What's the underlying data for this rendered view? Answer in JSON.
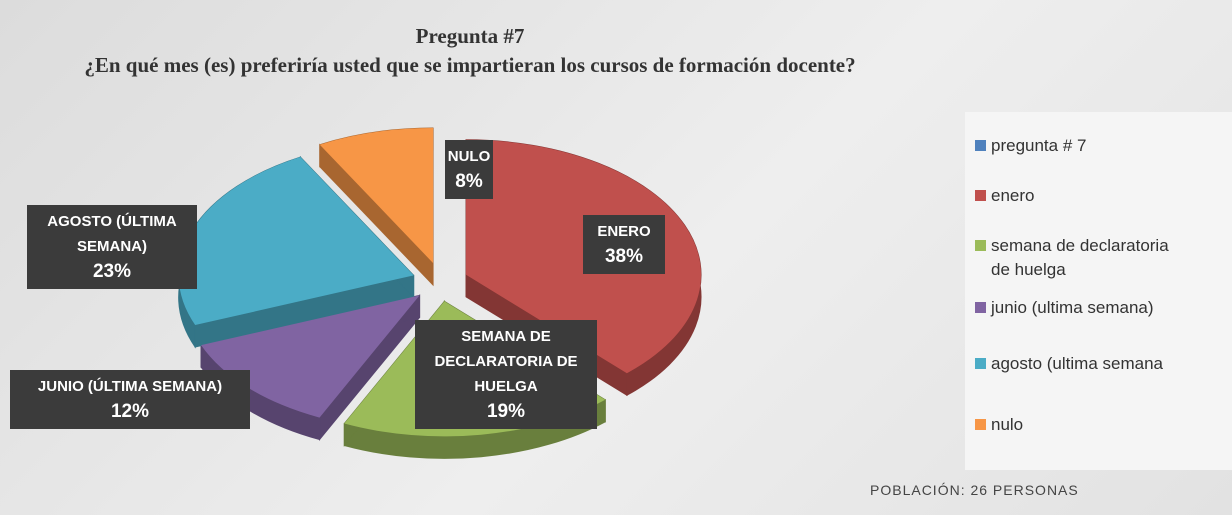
{
  "chart_data": {
    "type": "pie3d",
    "title": "Pregunta #7",
    "subtitle": "¿En qué mes (es) preferiría usted que se impartieran los cursos de formación docente?",
    "categories": [
      "pregunta # 7",
      "enero",
      "semana de declaratoria de huelga",
      "junio (ultima semana)",
      "agosto (ultima semana",
      "nulo"
    ],
    "values": [
      0,
      38,
      19,
      12,
      23,
      8
    ],
    "colors": [
      "#4f81bd",
      "#c0504d",
      "#9bbb59",
      "#8064a2",
      "#4bacc6",
      "#f79646"
    ],
    "data_labels": [
      null,
      "ENERO",
      "SEMANA DE DECLARATORIA DE HUELGA",
      "JUNIO (ÚLTIMA SEMANA)",
      "AGOSTO (ÚLTIMA SEMANA)",
      "NULO"
    ],
    "value_labels": [
      null,
      "38%",
      "19%",
      "12%",
      "23%",
      "8%"
    ],
    "legend": "right",
    "footer": "POBLACIÓN: 26 PERSONAS"
  }
}
